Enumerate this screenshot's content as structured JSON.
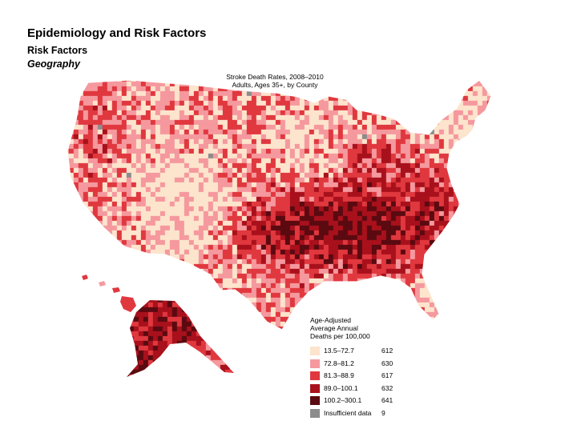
{
  "header": {
    "title": "Epidemiology and Risk Factors",
    "subtitle": "Risk Factors",
    "section": "Geography"
  },
  "map": {
    "title_line1": "Stroke Death Rates, 2008–2010",
    "title_line2": "Adults, Ages 35+, by County",
    "region": "United States counties",
    "colors": [
      "#fde4cd",
      "#f5999e",
      "#e0383f",
      "#a8111c",
      "#5a0a10",
      "#8c8c8c"
    ]
  },
  "legend": {
    "title_line1": "Age-Adjusted",
    "title_line2": "Average Annual",
    "title_line3": "Deaths per 100,000",
    "items": [
      {
        "label": "13.5–72.7",
        "count": "612",
        "color": "#fde4cd"
      },
      {
        "label": "72.8–81.2",
        "count": "630",
        "color": "#f5999e"
      },
      {
        "label": "81.3–88.9",
        "count": "617",
        "color": "#e0383f"
      },
      {
        "label": "89.0–100.1",
        "count": "632",
        "color": "#a8111c"
      },
      {
        "label": "100.2–300.1",
        "count": "641",
        "color": "#5a0a10"
      },
      {
        "label": "Insufficient data",
        "count": "9",
        "color": "#8c8c8c"
      }
    ]
  }
}
